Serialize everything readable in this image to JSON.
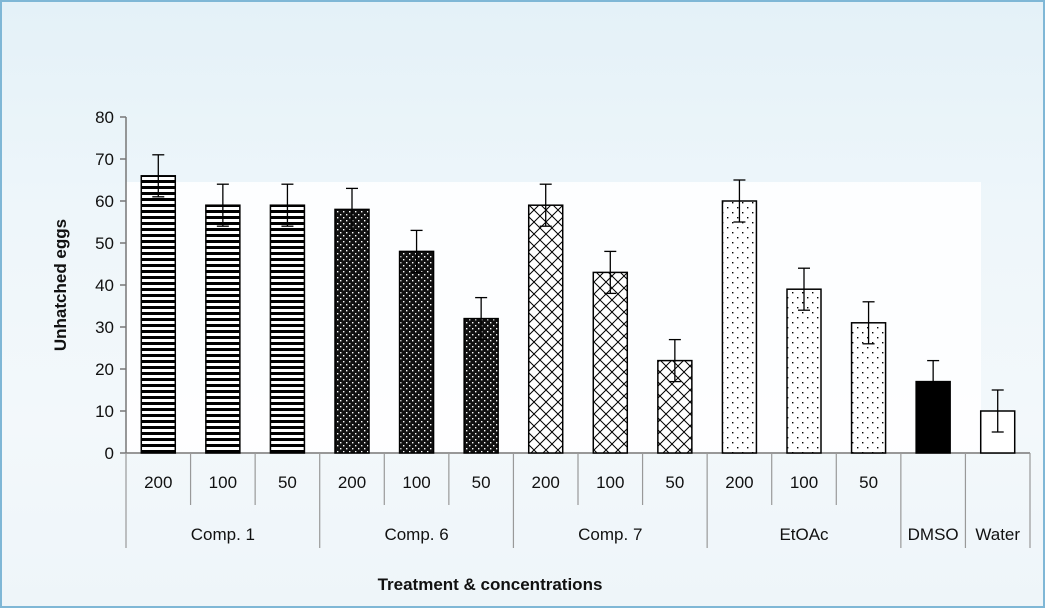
{
  "chart_data": {
    "type": "bar",
    "title": "",
    "xlabel": "Treatment & concentrations",
    "ylabel": "Unhatched eggs",
    "ylim": [
      0,
      80
    ],
    "yticks": [
      0,
      10,
      20,
      30,
      40,
      50,
      60,
      70,
      80
    ],
    "grid": false,
    "legend": "none",
    "groups": [
      {
        "name": "Comp. 1",
        "pattern": "horizontal-lines",
        "bars": [
          {
            "label": "200",
            "value": 66,
            "error": 5
          },
          {
            "label": "100",
            "value": 59,
            "error": 5
          },
          {
            "label": "50",
            "value": 59,
            "error": 5
          }
        ]
      },
      {
        "name": "Comp. 6",
        "pattern": "dense-dots",
        "bars": [
          {
            "label": "200",
            "value": 58,
            "error": 5
          },
          {
            "label": "100",
            "value": 48,
            "error": 5
          },
          {
            "label": "50",
            "value": 32,
            "error": 5
          }
        ]
      },
      {
        "name": "Comp. 7",
        "pattern": "crosshatch",
        "bars": [
          {
            "label": "200",
            "value": 59,
            "error": 5
          },
          {
            "label": "100",
            "value": 43,
            "error": 5
          },
          {
            "label": "50",
            "value": 22,
            "error": 5
          }
        ]
      },
      {
        "name": "EtOAc",
        "pattern": "sparse-dots",
        "bars": [
          {
            "label": "200",
            "value": 60,
            "error": 5
          },
          {
            "label": "100",
            "value": 39,
            "error": 5
          },
          {
            "label": "50",
            "value": 31,
            "error": 5
          }
        ]
      },
      {
        "name": "DMSO",
        "pattern": "solid-black",
        "bars": [
          {
            "label": "",
            "value": 17,
            "error": 5
          }
        ]
      },
      {
        "name": "Water",
        "pattern": "white",
        "bars": [
          {
            "label": "",
            "value": 10,
            "error": 5
          }
        ]
      }
    ]
  }
}
